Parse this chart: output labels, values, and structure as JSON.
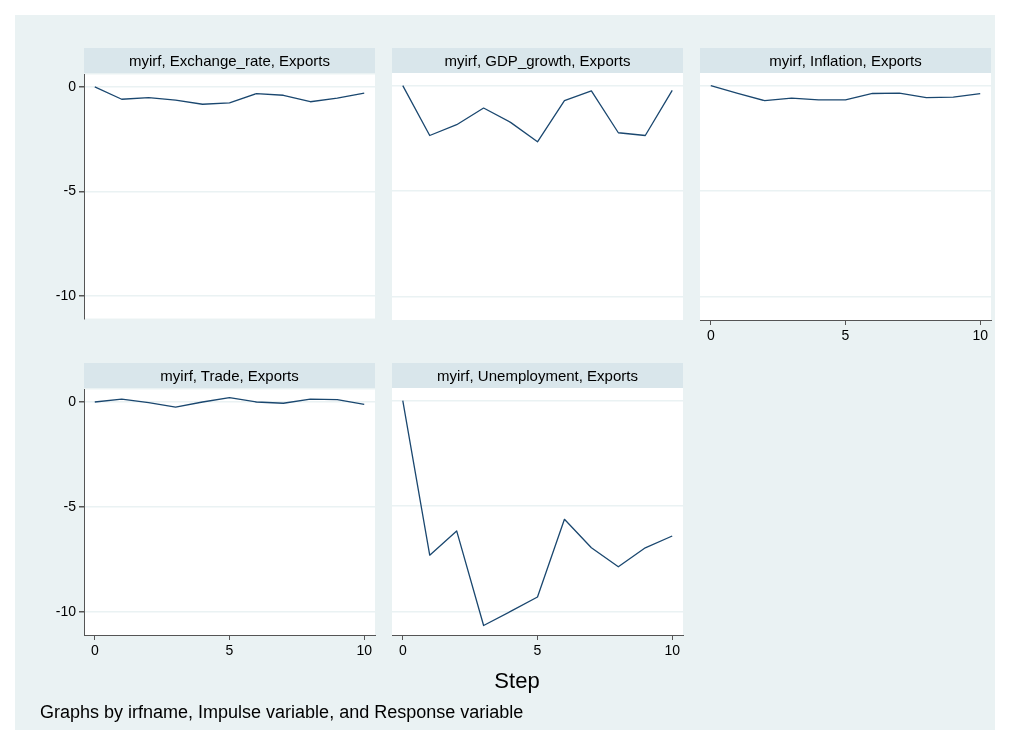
{
  "chart_data": [
    {
      "type": "line",
      "title": "myirf, Exchange_rate, Exports",
      "x": [
        0,
        1,
        2,
        3,
        4,
        5,
        6,
        7,
        8,
        9,
        10
      ],
      "values": [
        0,
        -0.59,
        -0.51,
        -0.63,
        -0.83,
        -0.76,
        -0.32,
        -0.4,
        -0.71,
        -0.54,
        -0.3
      ],
      "color": "#1a476f",
      "xlim": [
        -0.4,
        10.4
      ],
      "xticks": [
        0,
        5,
        10
      ],
      "ylim": [
        -11.1,
        0.6
      ],
      "yticks": [
        -10,
        -5,
        0
      ],
      "grid": "y",
      "tick_labels": "y"
    },
    {
      "type": "line",
      "title": "myirf, GDP_growth, Exports",
      "x": [
        0,
        1,
        2,
        3,
        4,
        5,
        6,
        7,
        8,
        9,
        10
      ],
      "values": [
        0,
        -2.36,
        -1.85,
        -1.06,
        -1.74,
        -2.66,
        -0.71,
        -0.25,
        -2.23,
        -2.36,
        -0.22
      ],
      "color": "#1a476f",
      "xlim": [
        -0.4,
        10.4
      ],
      "xticks": [
        0,
        5,
        10
      ],
      "ylim": [
        -11.1,
        0.6
      ],
      "yticks": [
        -10,
        -5,
        0
      ],
      "grid": "y",
      "tick_labels": false
    },
    {
      "type": "line",
      "title": "myirf, Inflation, Exports",
      "x": [
        0,
        1,
        2,
        3,
        4,
        5,
        6,
        7,
        8,
        9,
        10
      ],
      "values": [
        0,
        -0.37,
        -0.71,
        -0.59,
        -0.67,
        -0.67,
        -0.37,
        -0.35,
        -0.57,
        -0.54,
        -0.38
      ],
      "color": "#1a476f",
      "xlim": [
        -0.4,
        10.4
      ],
      "xticks": [
        0,
        5,
        10
      ],
      "ylim": [
        -11.1,
        0.6
      ],
      "yticks": [
        -10,
        -5,
        0
      ],
      "grid": "y",
      "tick_labels": "x"
    },
    {
      "type": "line",
      "title": "myirf, Trade, Exports",
      "x": [
        0,
        1,
        2,
        3,
        4,
        5,
        6,
        7,
        8,
        9,
        10
      ],
      "values": [
        0,
        0.14,
        -0.03,
        -0.24,
        0,
        0.21,
        0,
        -0.06,
        0.14,
        0.11,
        -0.11
      ],
      "color": "#1a476f",
      "xlim": [
        -0.4,
        10.4
      ],
      "xticks": [
        0,
        5,
        10
      ],
      "ylim": [
        -11.1,
        0.6
      ],
      "yticks": [
        -10,
        -5,
        0
      ],
      "grid": "y"
    },
    {
      "type": "line",
      "title": "myirf, Unemployment, Exports",
      "x": [
        0,
        1,
        2,
        3,
        4,
        5,
        6,
        7,
        8,
        9,
        10
      ],
      "values": [
        0,
        -7.32,
        -6.17,
        -10.65,
        -9.98,
        -9.3,
        -5.62,
        -6.97,
        -7.87,
        -6.97,
        -6.41
      ],
      "color": "#1a476f",
      "xlim": [
        -0.4,
        10.4
      ],
      "xticks": [
        0,
        5,
        10
      ],
      "ylim": [
        -11.1,
        0.6
      ],
      "yticks": [
        -10,
        -5,
        0
      ],
      "grid": "y",
      "tick_labels": "x",
      "xlabel": "Step",
      "annotations": [
        "Graphs by irfname, Impulse variable, and Response variable"
      ]
    }
  ]
}
